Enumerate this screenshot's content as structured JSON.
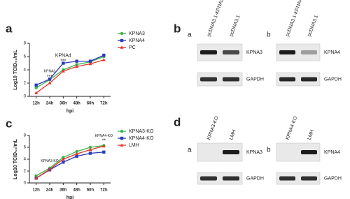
{
  "chart_data": [
    {
      "type": "line",
      "label": "a",
      "xlabel": "hpi",
      "ylabel": "Log10 TCID₅₀/mL",
      "categories": [
        "12h",
        "24h",
        "36h",
        "48h",
        "60h",
        "72h"
      ],
      "series": [
        {
          "name": "KPNA3",
          "color": "#3cb44b",
          "values": [
            1.3,
            2.5,
            4.0,
            4.8,
            5.2,
            6.0
          ]
        },
        {
          "name": "KPNA4",
          "color": "#2a3bbd",
          "values": [
            1.7,
            2.6,
            5.0,
            5.3,
            5.3,
            6.2
          ]
        },
        {
          "name": "PC",
          "color": "#e8332a",
          "values": [
            0.5,
            2.0,
            3.8,
            4.5,
            4.9,
            5.5
          ]
        }
      ],
      "ylim": [
        0,
        8
      ],
      "yticks": [
        0,
        2,
        4,
        6,
        8
      ],
      "annotations": [
        "KPNA3",
        "***",
        "KPNA4",
        "***"
      ]
    },
    {
      "type": "line",
      "label": "c",
      "xlabel": "hpi",
      "ylabel": "Log10 TCID₅₀/mL",
      "categories": [
        "12h",
        "24h",
        "36h",
        "48h",
        "60h",
        "72h"
      ],
      "series": [
        {
          "name": "KPNA3-KO",
          "color": "#3cb44b",
          "values": [
            1.2,
            2.5,
            4.3,
            5.3,
            6.0,
            6.3
          ]
        },
        {
          "name": "KPNA4-KO",
          "color": "#2a3bbd",
          "values": [
            0.8,
            2.2,
            3.5,
            4.5,
            5.0,
            5.2
          ]
        },
        {
          "name": "LMH",
          "color": "#e8332a",
          "values": [
            0.8,
            2.3,
            4.0,
            4.9,
            5.6,
            6.2
          ]
        }
      ],
      "ylim": [
        0,
        8
      ],
      "yticks": [
        0,
        2,
        4,
        6,
        8
      ],
      "annotations": [
        "KPNA3-KO",
        "KPNA4-KO",
        "**"
      ]
    }
  ],
  "panels": [
    "b",
    "d"
  ],
  "blots": [
    {
      "label": "a",
      "lanes": [
        "pcDNA3.1-KPNA3",
        "pcDNA3.1"
      ],
      "bands": [
        "KPNA3",
        "GAPDH"
      ]
    },
    {
      "label": "b",
      "lanes": [
        "pcDNA3.1-KPNA4",
        "pcDNA3.1"
      ],
      "bands": [
        "KPNA4",
        "GAPDH"
      ]
    },
    {
      "label": "a",
      "lanes": [
        "KPNA3-KO",
        "LMH"
      ],
      "bands": [
        "KPNA3",
        "GAPDH"
      ]
    },
    {
      "label": "b",
      "lanes": [
        "KPNA4-KO",
        "LMH"
      ],
      "bands": [
        "KPNA4",
        "GAPDH"
      ]
    }
  ]
}
